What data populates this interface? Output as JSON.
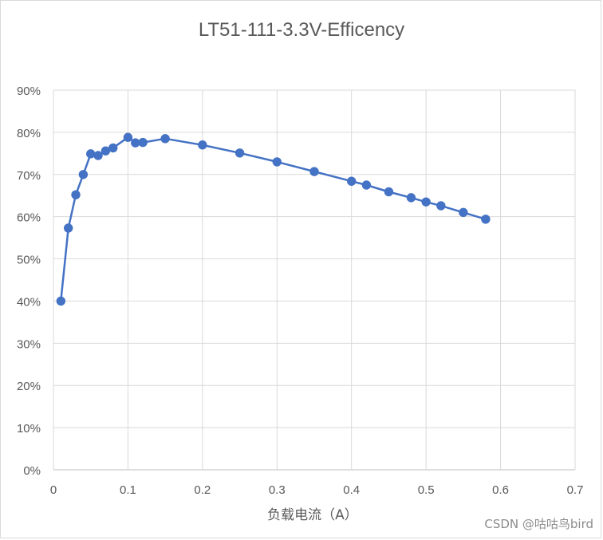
{
  "chart_data": {
    "type": "line",
    "title": "LT51-111-3.3V-Efficency",
    "xlabel": "负载电流（A）",
    "ylabel": "",
    "xlim": [
      0,
      0.7
    ],
    "ylim": [
      0,
      90
    ],
    "x_ticks": [
      "0",
      "0.1",
      "0.2",
      "0.3",
      "0.4",
      "0.5",
      "0.6",
      "0.7"
    ],
    "y_ticks": [
      "0%",
      "10%",
      "20%",
      "30%",
      "40%",
      "50%",
      "60%",
      "70%",
      "80%",
      "90%"
    ],
    "grid": true,
    "legend": "none",
    "series": [
      {
        "color": "#4472c4",
        "x": [
          0.01,
          0.02,
          0.03,
          0.04,
          0.05,
          0.06,
          0.07,
          0.08,
          0.1,
          0.11,
          0.12,
          0.15,
          0.2,
          0.25,
          0.3,
          0.35,
          0.4,
          0.42,
          0.45,
          0.48,
          0.5,
          0.52,
          0.55,
          0.58
        ],
        "y": [
          40.0,
          57.3,
          65.2,
          70.0,
          74.9,
          74.5,
          75.6,
          76.3,
          78.8,
          77.5,
          77.6,
          78.5,
          77.0,
          75.1,
          73.0,
          70.7,
          68.4,
          67.5,
          65.9,
          64.5,
          63.5,
          62.6,
          61.0,
          59.4
        ]
      }
    ]
  },
  "watermark": "CSDN @咕咕鸟bird"
}
